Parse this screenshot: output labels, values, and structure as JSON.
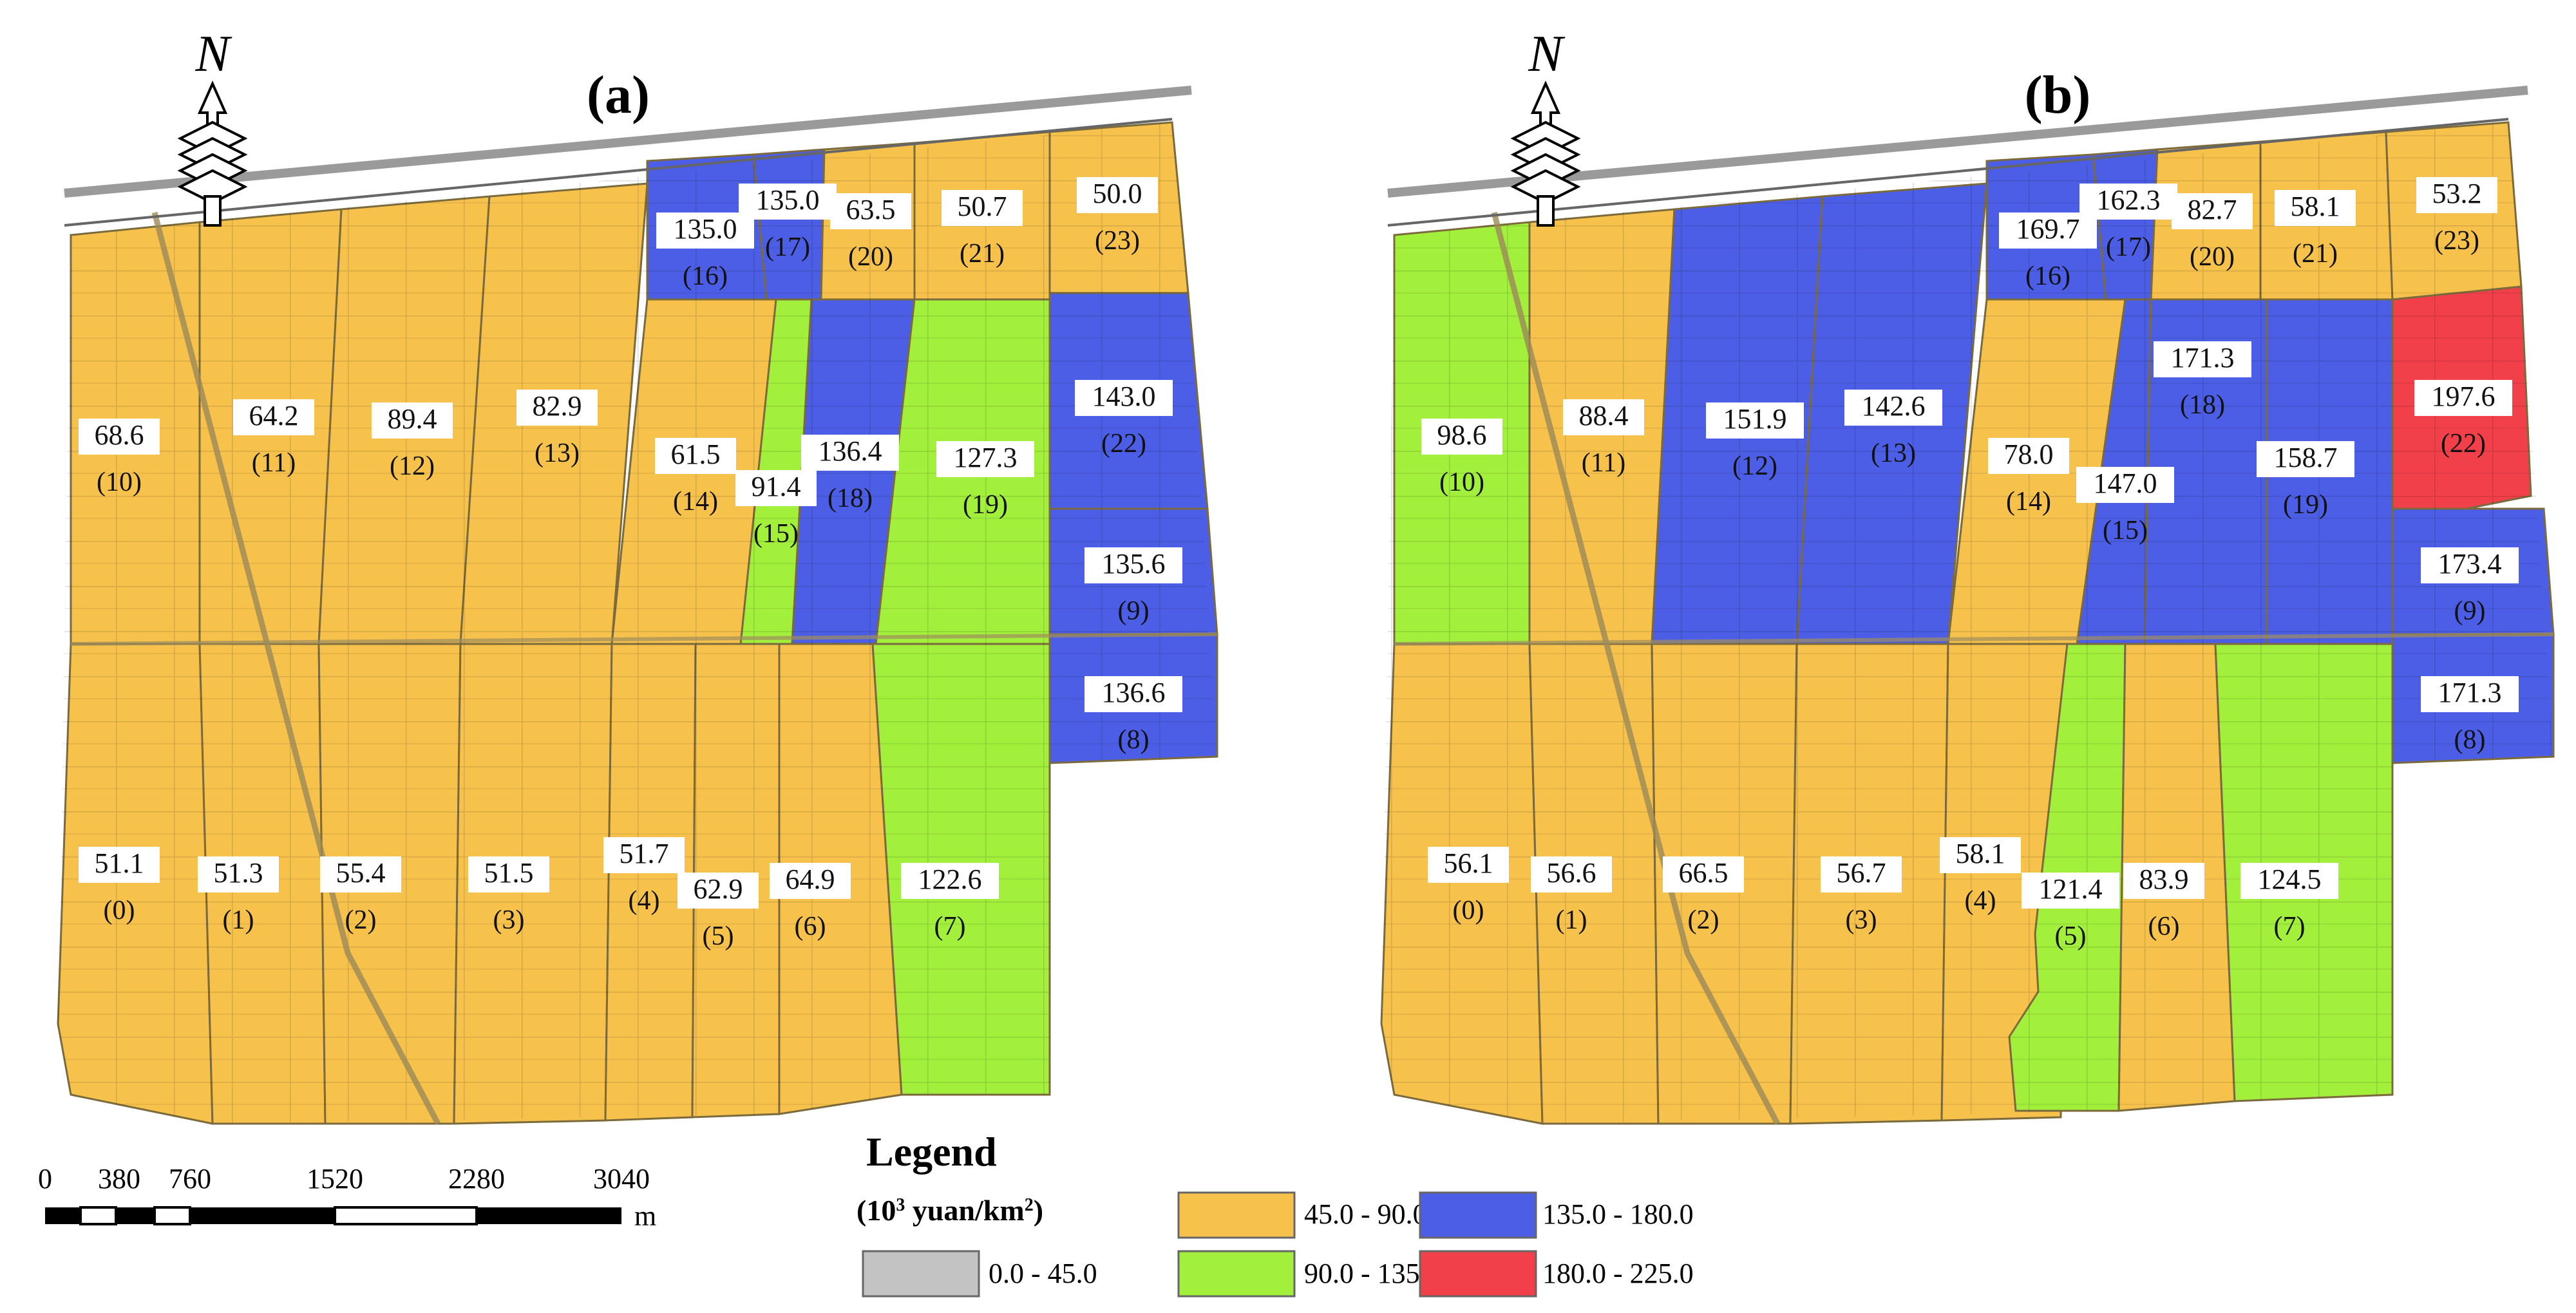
{
  "panels": {
    "a": {
      "label": "(a)",
      "zones": [
        {
          "id": "(0)",
          "value": "51.1",
          "cls": "c1"
        },
        {
          "id": "(1)",
          "value": "51.3",
          "cls": "c1"
        },
        {
          "id": "(2)",
          "value": "55.4",
          "cls": "c1"
        },
        {
          "id": "(3)",
          "value": "51.5",
          "cls": "c1"
        },
        {
          "id": "(4)",
          "value": "51.7",
          "cls": "c1"
        },
        {
          "id": "(5)",
          "value": "62.9",
          "cls": "c1"
        },
        {
          "id": "(6)",
          "value": "64.9",
          "cls": "c1"
        },
        {
          "id": "(7)",
          "value": "122.6",
          "cls": "c2"
        },
        {
          "id": "(8)",
          "value": "136.6",
          "cls": "c3"
        },
        {
          "id": "(9)",
          "value": "135.6",
          "cls": "c3"
        },
        {
          "id": "(10)",
          "value": "68.6",
          "cls": "c1"
        },
        {
          "id": "(11)",
          "value": "64.2",
          "cls": "c1"
        },
        {
          "id": "(12)",
          "value": "89.4",
          "cls": "c1"
        },
        {
          "id": "(13)",
          "value": "82.9",
          "cls": "c1"
        },
        {
          "id": "(14)",
          "value": "61.5",
          "cls": "c1"
        },
        {
          "id": "(15)",
          "value": "91.4",
          "cls": "c2"
        },
        {
          "id": "(16)",
          "value": "135.0",
          "cls": "c3"
        },
        {
          "id": "(17)",
          "value": "135.0",
          "cls": "c3"
        },
        {
          "id": "(18)",
          "value": "136.4",
          "cls": "c3"
        },
        {
          "id": "(19)",
          "value": "127.3",
          "cls": "c2"
        },
        {
          "id": "(20)",
          "value": "63.5",
          "cls": "c1"
        },
        {
          "id": "(21)",
          "value": "50.7",
          "cls": "c1"
        },
        {
          "id": "(22)",
          "value": "143.0",
          "cls": "c3"
        },
        {
          "id": "(23)",
          "value": "50.0",
          "cls": "c1"
        }
      ]
    },
    "b": {
      "label": "(b)",
      "zones": [
        {
          "id": "(0)",
          "value": "56.1",
          "cls": "c1"
        },
        {
          "id": "(1)",
          "value": "56.6",
          "cls": "c1"
        },
        {
          "id": "(2)",
          "value": "66.5",
          "cls": "c1"
        },
        {
          "id": "(3)",
          "value": "56.7",
          "cls": "c1"
        },
        {
          "id": "(4)",
          "value": "58.1",
          "cls": "c1"
        },
        {
          "id": "(5)",
          "value": "121.4",
          "cls": "c2"
        },
        {
          "id": "(6)",
          "value": "83.9",
          "cls": "c1"
        },
        {
          "id": "(7)",
          "value": "124.5",
          "cls": "c2"
        },
        {
          "id": "(8)",
          "value": "171.3",
          "cls": "c3"
        },
        {
          "id": "(9)",
          "value": "173.4",
          "cls": "c3"
        },
        {
          "id": "(10)",
          "value": "98.6",
          "cls": "c2"
        },
        {
          "id": "(11)",
          "value": "88.4",
          "cls": "c1"
        },
        {
          "id": "(12)",
          "value": "151.9",
          "cls": "c3"
        },
        {
          "id": "(13)",
          "value": "142.6",
          "cls": "c3"
        },
        {
          "id": "(14)",
          "value": "78.0",
          "cls": "c1"
        },
        {
          "id": "(15)",
          "value": "147.0",
          "cls": "c3"
        },
        {
          "id": "(16)",
          "value": "169.7",
          "cls": "c3"
        },
        {
          "id": "(17)",
          "value": "162.3",
          "cls": "c3"
        },
        {
          "id": "(18)",
          "value": "171.3",
          "cls": "c3"
        },
        {
          "id": "(19)",
          "value": "158.7",
          "cls": "c3"
        },
        {
          "id": "(20)",
          "value": "82.7",
          "cls": "c1"
        },
        {
          "id": "(21)",
          "value": "58.1",
          "cls": "c1"
        },
        {
          "id": "(22)",
          "value": "197.6",
          "cls": "c4"
        },
        {
          "id": "(23)",
          "value": "53.2",
          "cls": "c1"
        }
      ]
    }
  },
  "north": {
    "letter": "N",
    "icon": "north-arrow-icon"
  },
  "legend": {
    "title": "Legend",
    "unit_prefix": "(10",
    "unit_exp": "3",
    "unit_suffix": " yuan/km",
    "unit_exp2": "2",
    "unit_close": ")",
    "classes": [
      {
        "key": "c0",
        "label": "0.0 - 45.0",
        "color": "#c3c3c3"
      },
      {
        "key": "c1",
        "label": "45.0 - 90.0",
        "color": "#f7c24c"
      },
      {
        "key": "c2",
        "label": "90.0 - 135.0",
        "color": "#a3f03c"
      },
      {
        "key": "c3",
        "label": "135.0 - 180.0",
        "color": "#4c5ee6"
      },
      {
        "key": "c4",
        "label": "180.0 - 225.0",
        "color": "#f2404a"
      }
    ]
  },
  "scalebar": {
    "labels": [
      "0",
      "380",
      "760",
      "1520",
      "2280",
      "3040"
    ],
    "unit": "m"
  }
}
